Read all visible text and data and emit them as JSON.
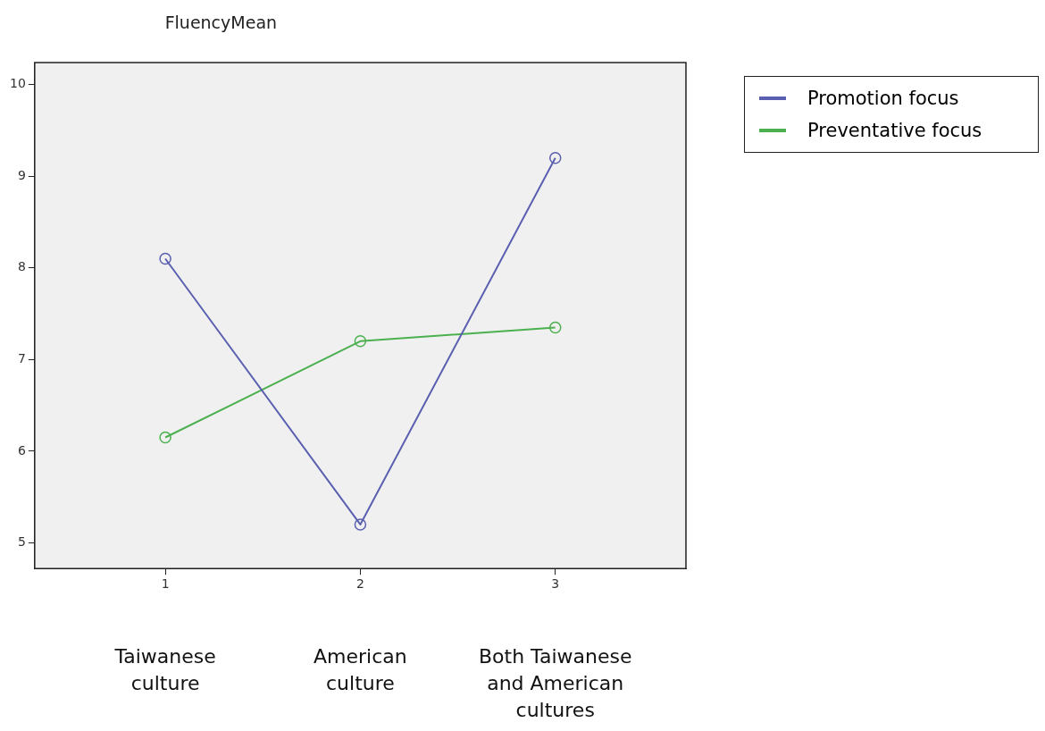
{
  "chart_data": {
    "type": "line",
    "title": "FluencyMean",
    "x": [
      1,
      2,
      3
    ],
    "xlim": [
      0.33,
      3.67
    ],
    "xticks": [
      1,
      2,
      3
    ],
    "ylim": [
      4.72,
      10.24
    ],
    "yticks": [
      5,
      6,
      7,
      8,
      9,
      10
    ],
    "series": [
      {
        "name": "Promotion focus",
        "color": "#5a5fb0",
        "values": [
          8.1,
          5.2,
          9.2
        ]
      },
      {
        "name": "Preventative focus",
        "color": "#4cb050",
        "values": [
          6.15,
          7.2,
          7.35
        ]
      }
    ],
    "marker": "circle",
    "grid": false,
    "legend": "top right",
    "annotations": [
      "Taiwanese culture",
      "American culture",
      "Both Taiwanese and American cultures"
    ]
  }
}
